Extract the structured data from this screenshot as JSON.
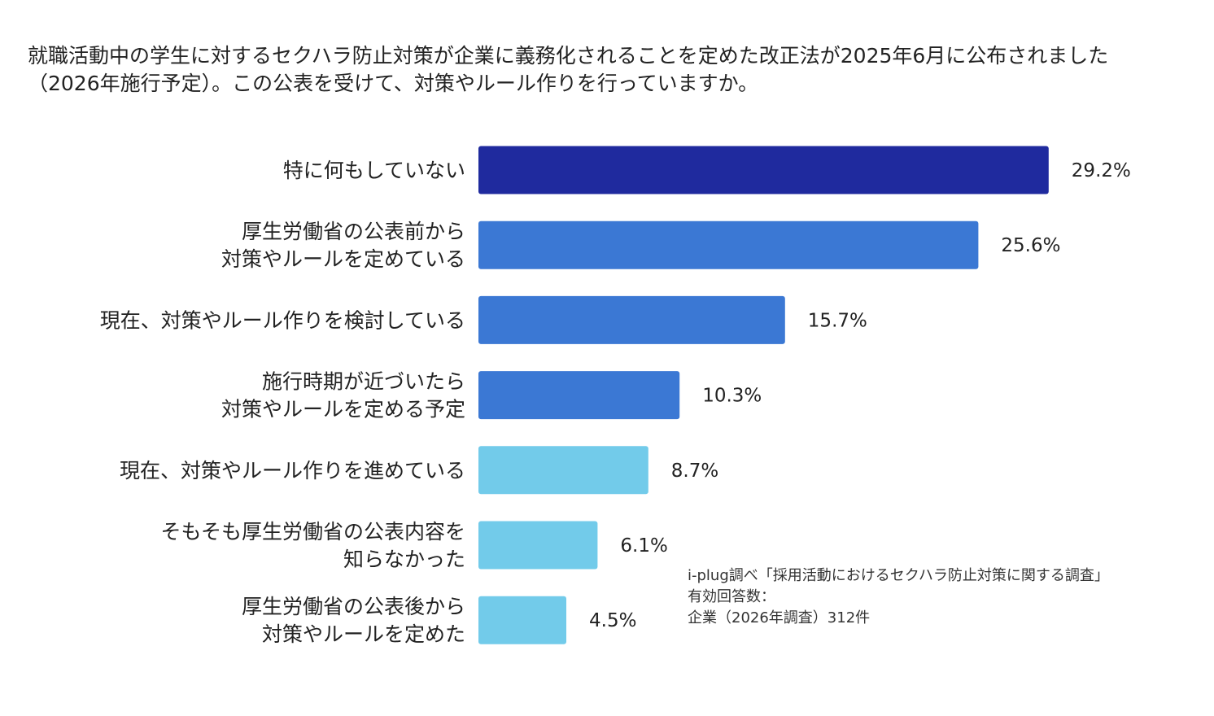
{
  "question": "就職活動中の学生に対するセクハラ防止対策が企業に義務化されることを定めた改正法が2025年6月に公布されました（2026年施行予定）。この公表を受けて、対策やルール作りを行っていますか。",
  "source": {
    "line1": "i-plug調べ「採用活動におけるセクハラ防止対策に関する調査」",
    "line2": "有効回答数：",
    "line3": "企業（2026年調査）312件"
  },
  "colors": {
    "navy": "#1f2a9e",
    "blue": "#3b78d4",
    "light_blue": "#72cbea"
  },
  "chart_data": {
    "type": "bar",
    "orientation": "horizontal",
    "categories": [
      [
        "特に何もしていない"
      ],
      [
        "厚生労働省の公表前から",
        "対策やルールを定めている"
      ],
      [
        "現在、対策やルール作りを検討している"
      ],
      [
        "施行時期が近づいたら",
        "対策やルールを定める予定"
      ],
      [
        "現在、対策やルール作りを進めている"
      ],
      [
        "そもそも厚生労働省の公表内容を",
        "知らなかった"
      ],
      [
        "厚生労働省の公表後から",
        "対策やルールを定めた"
      ]
    ],
    "values": [
      29.2,
      25.6,
      15.7,
      10.3,
      8.7,
      6.1,
      4.5
    ],
    "value_labels": [
      "29.2%",
      "25.6%",
      "15.7%",
      "10.3%",
      "8.7%",
      "6.1%",
      "4.5%"
    ],
    "bar_colors": [
      "#1f2a9e",
      "#3b78d4",
      "#3b78d4",
      "#3b78d4",
      "#72cbea",
      "#72cbea",
      "#72cbea"
    ],
    "unit": "%",
    "grid": false,
    "legend": false
  }
}
